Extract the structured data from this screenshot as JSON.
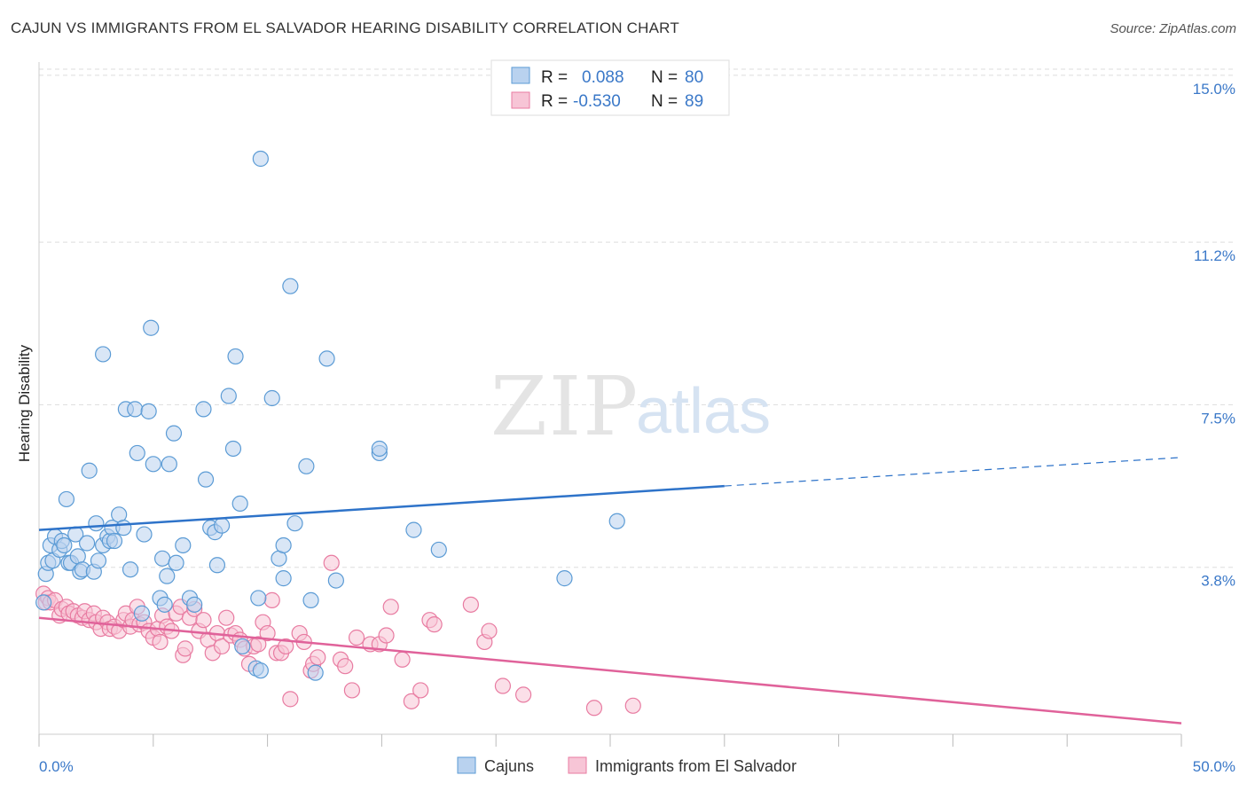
{
  "title": "CAJUN VS IMMIGRANTS FROM EL SALVADOR HEARING DISABILITY CORRELATION CHART",
  "source": "Source: ZipAtlas.com",
  "watermark": {
    "zip": "ZIP",
    "atlas": "atlas"
  },
  "colors": {
    "blue": "#5b9bd5",
    "blue_fill": "#b9d2ef",
    "blue_line": "#2e73c9",
    "pink": "#e87ba1",
    "pink_fill": "#f7c5d6",
    "pink_line": "#e0629a",
    "tick": "#3a78c8",
    "grid": "#dddddd"
  },
  "legend": {
    "rows": [
      {
        "r_label": "R =",
        "r_value": "0.088",
        "n_label": "N =",
        "n_value": "80"
      },
      {
        "r_label": "R =",
        "r_value": "-0.530",
        "n_label": "N =",
        "n_value": "89"
      }
    ]
  },
  "chart_data": {
    "type": "scatter",
    "title": "CAJUN VS IMMIGRANTS FROM EL SALVADOR HEARING DISABILITY CORRELATION CHART",
    "xlabel": "",
    "ylabel": "Hearing Disability",
    "xlim": [
      0,
      50
    ],
    "ylim": [
      0,
      15.3
    ],
    "x_tick_labels": [
      "0.0%",
      "50.0%"
    ],
    "y_ticks": [
      3.8,
      7.5,
      11.2,
      15.0
    ],
    "y_tick_labels": [
      "3.8%",
      "7.5%",
      "11.2%",
      "15.0%"
    ],
    "grid": true,
    "legend_position": "top-center",
    "series": [
      {
        "name": "Cajuns",
        "color": "#5b9bd5",
        "trend": {
          "x0": 0,
          "y0": 4.65,
          "x1": 30,
          "y1": 5.65,
          "dash_x1": 50,
          "dash_y1": 6.3
        },
        "points": [
          [
            0.2,
            3.0
          ],
          [
            0.3,
            3.65
          ],
          [
            0.4,
            3.9
          ],
          [
            0.5,
            4.3
          ],
          [
            0.6,
            3.95
          ],
          [
            0.7,
            4.5
          ],
          [
            0.9,
            4.2
          ],
          [
            1.0,
            4.4
          ],
          [
            1.1,
            4.3
          ],
          [
            1.2,
            5.35
          ],
          [
            1.3,
            3.9
          ],
          [
            1.4,
            3.9
          ],
          [
            1.6,
            4.55
          ],
          [
            1.7,
            4.05
          ],
          [
            1.8,
            3.7
          ],
          [
            1.9,
            3.75
          ],
          [
            2.1,
            4.35
          ],
          [
            2.2,
            6.0
          ],
          [
            2.4,
            3.7
          ],
          [
            2.5,
            4.8
          ],
          [
            2.6,
            3.95
          ],
          [
            2.8,
            8.65
          ],
          [
            2.8,
            4.3
          ],
          [
            3.0,
            4.5
          ],
          [
            3.1,
            4.4
          ],
          [
            3.2,
            4.7
          ],
          [
            3.3,
            4.4
          ],
          [
            3.5,
            5.0
          ],
          [
            3.7,
            4.7
          ],
          [
            3.8,
            7.4
          ],
          [
            4.0,
            3.75
          ],
          [
            4.2,
            7.4
          ],
          [
            4.3,
            6.4
          ],
          [
            4.5,
            2.75
          ],
          [
            4.6,
            4.55
          ],
          [
            4.8,
            7.35
          ],
          [
            4.9,
            9.25
          ],
          [
            5.0,
            6.15
          ],
          [
            5.3,
            3.1
          ],
          [
            5.4,
            4.0
          ],
          [
            5.5,
            2.95
          ],
          [
            5.6,
            3.6
          ],
          [
            5.7,
            6.15
          ],
          [
            5.9,
            6.85
          ],
          [
            6.0,
            3.9
          ],
          [
            6.3,
            4.3
          ],
          [
            6.6,
            3.1
          ],
          [
            6.8,
            2.95
          ],
          [
            7.2,
            7.4
          ],
          [
            7.3,
            5.8
          ],
          [
            7.5,
            4.7
          ],
          [
            7.7,
            4.6
          ],
          [
            7.8,
            3.85
          ],
          [
            8.0,
            4.75
          ],
          [
            8.3,
            7.7
          ],
          [
            8.5,
            6.5
          ],
          [
            8.6,
            8.6
          ],
          [
            8.8,
            5.25
          ],
          [
            8.9,
            2.0
          ],
          [
            9.5,
            1.5
          ],
          [
            9.6,
            3.1
          ],
          [
            9.7,
            1.45
          ],
          [
            9.7,
            13.1
          ],
          [
            10.2,
            7.65
          ],
          [
            10.5,
            4.0
          ],
          [
            10.7,
            4.3
          ],
          [
            10.7,
            3.55
          ],
          [
            11.0,
            10.2
          ],
          [
            11.2,
            4.8
          ],
          [
            11.7,
            6.1
          ],
          [
            11.9,
            3.05
          ],
          [
            12.1,
            1.4
          ],
          [
            12.6,
            8.55
          ],
          [
            13.0,
            3.5
          ],
          [
            14.9,
            6.4
          ],
          [
            14.9,
            6.5
          ],
          [
            16.4,
            4.65
          ],
          [
            17.5,
            4.2
          ],
          [
            23.0,
            3.55
          ],
          [
            25.3,
            4.85
          ]
        ]
      },
      {
        "name": "Immigrants from El Salvador",
        "color": "#e87ba1",
        "trend": {
          "x0": 0,
          "y0": 2.65,
          "x1": 50,
          "y1": 0.25
        },
        "points": [
          [
            0.2,
            3.2
          ],
          [
            0.3,
            3.0
          ],
          [
            0.4,
            3.1
          ],
          [
            0.5,
            3.0
          ],
          [
            0.7,
            3.05
          ],
          [
            0.9,
            2.7
          ],
          [
            1.0,
            2.85
          ],
          [
            1.2,
            2.9
          ],
          [
            1.3,
            2.75
          ],
          [
            1.5,
            2.8
          ],
          [
            1.7,
            2.7
          ],
          [
            1.9,
            2.65
          ],
          [
            2.0,
            2.8
          ],
          [
            2.2,
            2.6
          ],
          [
            2.4,
            2.75
          ],
          [
            2.5,
            2.55
          ],
          [
            2.7,
            2.4
          ],
          [
            2.8,
            2.65
          ],
          [
            3.0,
            2.55
          ],
          [
            3.1,
            2.4
          ],
          [
            3.3,
            2.45
          ],
          [
            3.5,
            2.35
          ],
          [
            3.7,
            2.6
          ],
          [
            3.8,
            2.75
          ],
          [
            4.0,
            2.45
          ],
          [
            4.1,
            2.6
          ],
          [
            4.3,
            2.9
          ],
          [
            4.4,
            2.5
          ],
          [
            4.6,
            2.55
          ],
          [
            4.8,
            2.35
          ],
          [
            5.0,
            2.2
          ],
          [
            5.2,
            2.4
          ],
          [
            5.3,
            2.1
          ],
          [
            5.4,
            2.7
          ],
          [
            5.6,
            2.45
          ],
          [
            5.8,
            2.35
          ],
          [
            6.0,
            2.75
          ],
          [
            6.2,
            2.9
          ],
          [
            6.3,
            1.8
          ],
          [
            6.4,
            1.95
          ],
          [
            6.6,
            2.65
          ],
          [
            6.8,
            2.85
          ],
          [
            7.0,
            2.35
          ],
          [
            7.2,
            2.6
          ],
          [
            7.4,
            2.15
          ],
          [
            7.6,
            1.85
          ],
          [
            7.8,
            2.3
          ],
          [
            8.0,
            2.0
          ],
          [
            8.2,
            2.65
          ],
          [
            8.4,
            2.25
          ],
          [
            8.6,
            2.3
          ],
          [
            8.8,
            2.15
          ],
          [
            9.0,
            1.95
          ],
          [
            9.2,
            1.6
          ],
          [
            9.4,
            2.0
          ],
          [
            9.6,
            2.05
          ],
          [
            9.8,
            2.55
          ],
          [
            10.0,
            2.3
          ],
          [
            10.2,
            3.05
          ],
          [
            10.4,
            1.85
          ],
          [
            10.6,
            1.85
          ],
          [
            10.8,
            2.0
          ],
          [
            11.0,
            0.8
          ],
          [
            11.4,
            2.3
          ],
          [
            11.6,
            2.1
          ],
          [
            11.9,
            1.45
          ],
          [
            12.0,
            1.6
          ],
          [
            12.2,
            1.75
          ],
          [
            12.8,
            3.9
          ],
          [
            13.2,
            1.7
          ],
          [
            13.4,
            1.55
          ],
          [
            13.7,
            1.0
          ],
          [
            13.9,
            2.2
          ],
          [
            14.5,
            2.05
          ],
          [
            14.9,
            2.05
          ],
          [
            15.2,
            2.25
          ],
          [
            15.4,
            2.9
          ],
          [
            15.9,
            1.7
          ],
          [
            16.3,
            0.75
          ],
          [
            16.7,
            1.0
          ],
          [
            17.1,
            2.6
          ],
          [
            17.3,
            2.5
          ],
          [
            18.9,
            2.95
          ],
          [
            19.5,
            2.1
          ],
          [
            19.7,
            2.35
          ],
          [
            20.3,
            1.1
          ],
          [
            21.2,
            0.9
          ],
          [
            24.3,
            0.6
          ],
          [
            26.0,
            0.65
          ]
        ]
      }
    ]
  },
  "bottom_legend": [
    {
      "label": "Cajuns"
    },
    {
      "label": "Immigrants from El Salvador"
    }
  ]
}
